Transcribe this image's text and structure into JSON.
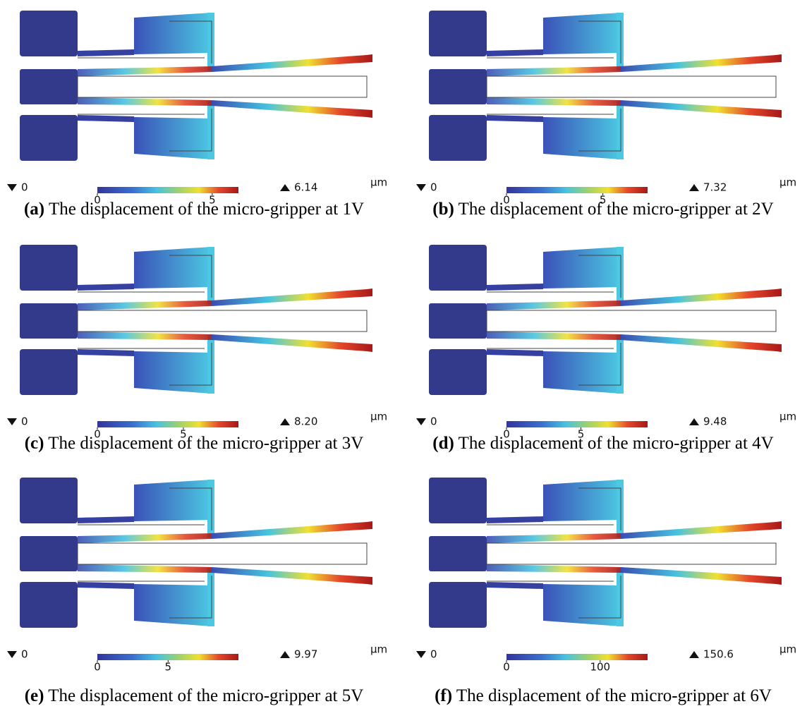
{
  "panels": [
    {
      "caption_label": "(a)",
      "caption": "The displacement of the micro-gripper at 1V",
      "min": "0",
      "max": "6.14",
      "unit": "μm",
      "colorbar_ticks": [
        0,
        5
      ]
    },
    {
      "caption_label": "(b)",
      "caption": "The displacement of the micro-gripper at 2V",
      "min": "0",
      "max": "7.32",
      "unit": "μm",
      "colorbar_ticks": [
        0,
        5
      ]
    },
    {
      "caption_label": "(c)",
      "caption": "The displacement of the micro-gripper at 3V",
      "min": "0",
      "max": "8.20",
      "unit": "μm",
      "colorbar_ticks": [
        0,
        5
      ]
    },
    {
      "caption_label": "(d)",
      "caption": "The displacement of the micro-gripper at 4V",
      "min": "0",
      "max": "9.48",
      "unit": "μm",
      "colorbar_ticks": [
        0,
        5
      ]
    },
    {
      "caption_label": "(e)",
      "caption": "The displacement of the micro-gripper at 5V",
      "min": "0",
      "max": "9.97",
      "unit": "μm",
      "colorbar_ticks": [
        0,
        5
      ]
    },
    {
      "caption_label": "(f)",
      "caption": "The displacement of the micro-gripper at 6V",
      "min": "0",
      "max": "150.6",
      "unit": "μm",
      "colorbar_ticks": [
        0,
        100
      ]
    }
  ]
}
